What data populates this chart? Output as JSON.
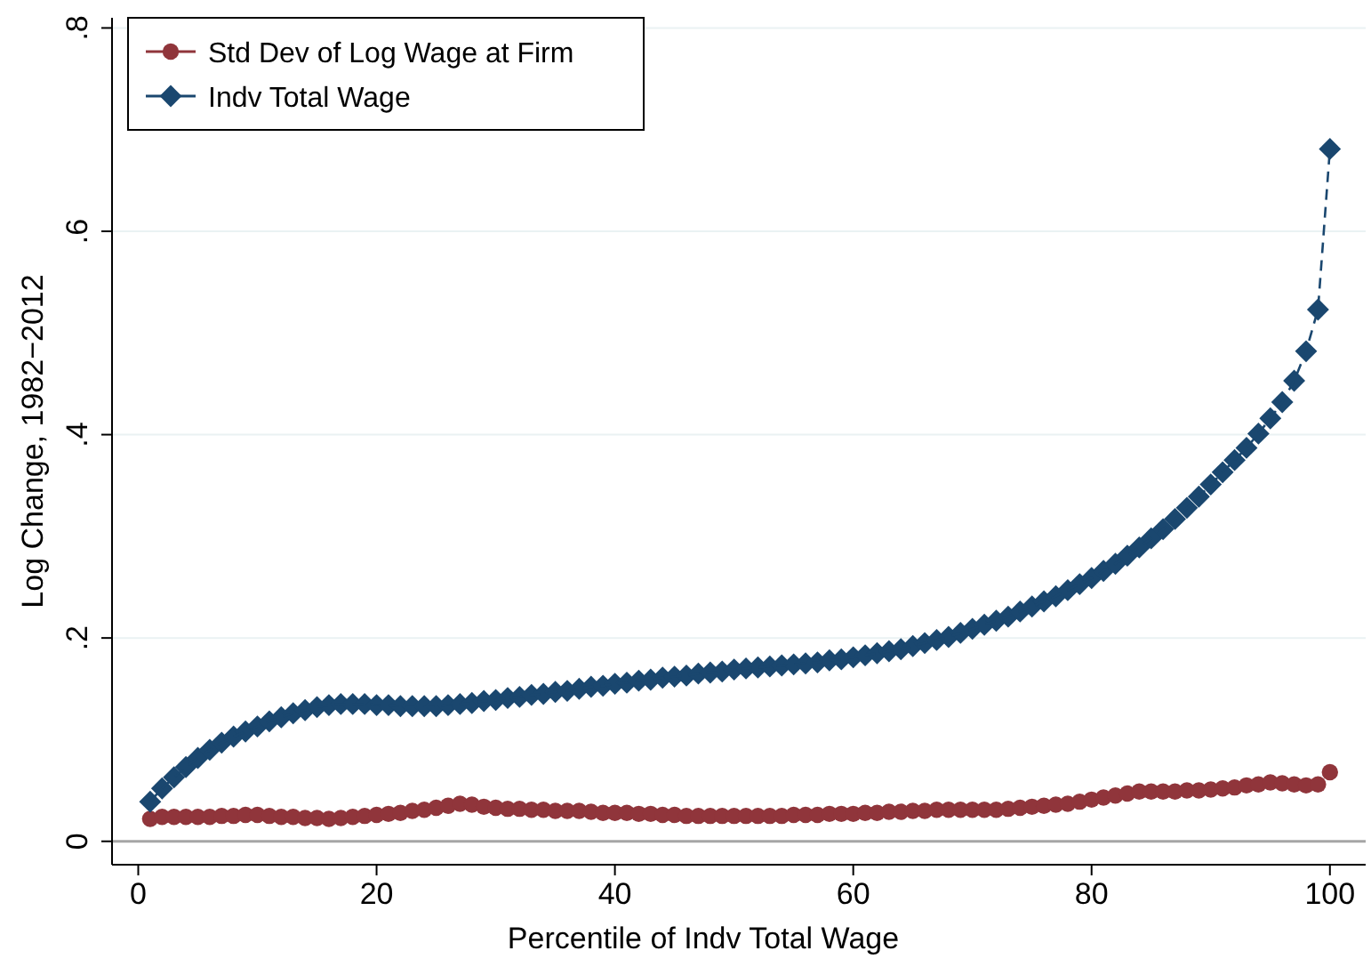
{
  "chart_data": {
    "type": "line",
    "xlabel": "Percentile of Indv Total Wage",
    "ylabel": "Log Change, 1982−2012",
    "x": [
      1,
      2,
      3,
      4,
      5,
      6,
      7,
      8,
      9,
      10,
      11,
      12,
      13,
      14,
      15,
      16,
      17,
      18,
      19,
      20,
      21,
      22,
      23,
      24,
      25,
      26,
      27,
      28,
      29,
      30,
      31,
      32,
      33,
      34,
      35,
      36,
      37,
      38,
      39,
      40,
      41,
      42,
      43,
      44,
      45,
      46,
      47,
      48,
      49,
      50,
      51,
      52,
      53,
      54,
      55,
      56,
      57,
      58,
      59,
      60,
      61,
      62,
      63,
      64,
      65,
      66,
      67,
      68,
      69,
      70,
      71,
      72,
      73,
      74,
      75,
      76,
      77,
      78,
      79,
      80,
      81,
      82,
      83,
      84,
      85,
      86,
      87,
      88,
      89,
      90,
      91,
      92,
      93,
      94,
      95,
      96,
      97,
      98,
      99,
      100
    ],
    "series": [
      {
        "name": "Std Dev of Log Wage at Firm",
        "type": "scatter",
        "color": "#90353b",
        "marker": "circle",
        "values": [
          0.022,
          0.024,
          0.024,
          0.024,
          0.024,
          0.024,
          0.025,
          0.025,
          0.026,
          0.026,
          0.025,
          0.024,
          0.024,
          0.023,
          0.023,
          0.022,
          0.023,
          0.024,
          0.025,
          0.026,
          0.027,
          0.028,
          0.03,
          0.031,
          0.033,
          0.035,
          0.037,
          0.036,
          0.034,
          0.033,
          0.032,
          0.032,
          0.031,
          0.031,
          0.03,
          0.03,
          0.03,
          0.029,
          0.028,
          0.028,
          0.028,
          0.027,
          0.027,
          0.026,
          0.026,
          0.025,
          0.025,
          0.025,
          0.025,
          0.025,
          0.025,
          0.025,
          0.025,
          0.025,
          0.026,
          0.026,
          0.026,
          0.027,
          0.027,
          0.027,
          0.028,
          0.028,
          0.029,
          0.029,
          0.03,
          0.03,
          0.031,
          0.031,
          0.031,
          0.031,
          0.031,
          0.031,
          0.032,
          0.033,
          0.034,
          0.035,
          0.036,
          0.037,
          0.039,
          0.041,
          0.043,
          0.045,
          0.047,
          0.049,
          0.049,
          0.049,
          0.049,
          0.05,
          0.05,
          0.051,
          0.052,
          0.053,
          0.055,
          0.056,
          0.058,
          0.057,
          0.056,
          0.055,
          0.056,
          0.068
        ]
      },
      {
        "name": "Indv Total Wage",
        "color": "#1a476f",
        "marker": "diamond",
        "values": [
          0.039,
          0.052,
          0.063,
          0.073,
          0.082,
          0.09,
          0.097,
          0.103,
          0.108,
          0.113,
          0.118,
          0.122,
          0.126,
          0.129,
          0.132,
          0.134,
          0.135,
          0.135,
          0.135,
          0.134,
          0.134,
          0.133,
          0.133,
          0.133,
          0.133,
          0.134,
          0.135,
          0.136,
          0.138,
          0.139,
          0.141,
          0.142,
          0.144,
          0.145,
          0.147,
          0.148,
          0.15,
          0.152,
          0.153,
          0.155,
          0.156,
          0.158,
          0.159,
          0.161,
          0.162,
          0.163,
          0.165,
          0.166,
          0.167,
          0.169,
          0.17,
          0.171,
          0.172,
          0.173,
          0.174,
          0.175,
          0.176,
          0.178,
          0.179,
          0.181,
          0.183,
          0.185,
          0.187,
          0.189,
          0.192,
          0.195,
          0.198,
          0.201,
          0.205,
          0.209,
          0.213,
          0.217,
          0.221,
          0.226,
          0.231,
          0.236,
          0.241,
          0.247,
          0.253,
          0.259,
          0.266,
          0.273,
          0.281,
          0.289,
          0.298,
          0.307,
          0.317,
          0.328,
          0.339,
          0.351,
          0.363,
          0.375,
          0.387,
          0.401,
          0.416,
          0.432,
          0.453,
          0.482,
          0.523,
          0.681
        ]
      }
    ],
    "xlim": [
      -2.2,
      103
    ],
    "xticks": [
      0,
      20,
      40,
      60,
      80,
      100
    ],
    "ylim": [
      -0.023,
      0.81
    ],
    "yticks": [
      {
        "value": 0,
        "label": "0"
      },
      {
        "value": 0.2,
        "label": ".2"
      },
      {
        "value": 0.4,
        "label": ".4"
      },
      {
        "value": 0.6,
        "label": ".6"
      },
      {
        "value": 0.8,
        "label": ".8"
      }
    ],
    "ref_lines": [
      {
        "axis": "y",
        "value": 0,
        "color": "#a6a6a6"
      }
    ],
    "grid": "y",
    "legend": "top left",
    "line_style": "dashed"
  }
}
